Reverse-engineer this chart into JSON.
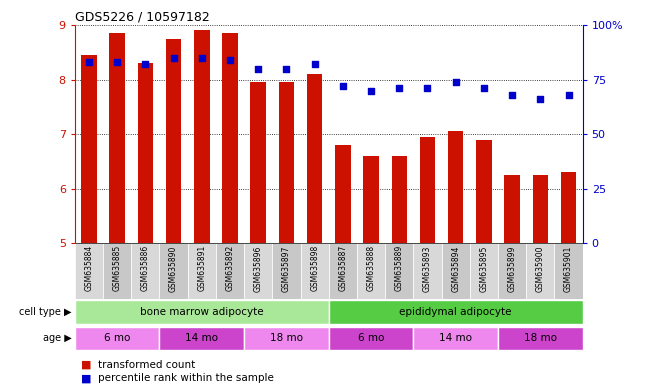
{
  "title": "GDS5226 / 10597182",
  "samples": [
    "GSM635884",
    "GSM635885",
    "GSM635886",
    "GSM635890",
    "GSM635891",
    "GSM635892",
    "GSM635896",
    "GSM635897",
    "GSM635898",
    "GSM635887",
    "GSM635888",
    "GSM635889",
    "GSM635893",
    "GSM635894",
    "GSM635895",
    "GSM635899",
    "GSM635900",
    "GSM635901"
  ],
  "bar_values": [
    8.45,
    8.85,
    8.3,
    8.75,
    8.9,
    8.85,
    7.95,
    7.95,
    8.1,
    6.8,
    6.6,
    6.6,
    6.95,
    7.05,
    6.9,
    6.25,
    6.25,
    6.3
  ],
  "percentile_values": [
    83,
    83,
    82,
    85,
    85,
    84,
    80,
    80,
    82,
    72,
    70,
    71,
    71,
    74,
    71,
    68,
    66,
    68
  ],
  "bar_color": "#cc1100",
  "dot_color": "#0000cc",
  "ylim": [
    5,
    9
  ],
  "y2lim": [
    0,
    100
  ],
  "yticks": [
    5,
    6,
    7,
    8,
    9
  ],
  "y2ticks": [
    0,
    25,
    50,
    75,
    100
  ],
  "y2ticklabels": [
    "0",
    "25",
    "50",
    "75",
    "100%"
  ],
  "cell_types": [
    {
      "label": "bone marrow adipocyte",
      "start": 0,
      "end": 9,
      "color": "#aae899"
    },
    {
      "label": "epididymal adipocyte",
      "start": 9,
      "end": 18,
      "color": "#55cc44"
    }
  ],
  "age_groups": [
    {
      "label": "6 mo",
      "start": 0,
      "end": 3,
      "color": "#ee88ee"
    },
    {
      "label": "14 mo",
      "start": 3,
      "end": 6,
      "color": "#cc44cc"
    },
    {
      "label": "18 mo",
      "start": 6,
      "end": 9,
      "color": "#ee88ee"
    },
    {
      "label": "6 mo",
      "start": 9,
      "end": 12,
      "color": "#cc44cc"
    },
    {
      "label": "14 mo",
      "start": 12,
      "end": 15,
      "color": "#ee88ee"
    },
    {
      "label": "18 mo",
      "start": 15,
      "end": 18,
      "color": "#cc44cc"
    }
  ],
  "legend_bar_label": "transformed count",
  "legend_dot_label": "percentile rank within the sample",
  "bar_color_red": "#cc1100",
  "dot_color_blue": "#0000cc",
  "background_color": "#ffffff",
  "sample_bg_even": "#d8d8d8",
  "sample_bg_odd": "#c8c8c8"
}
